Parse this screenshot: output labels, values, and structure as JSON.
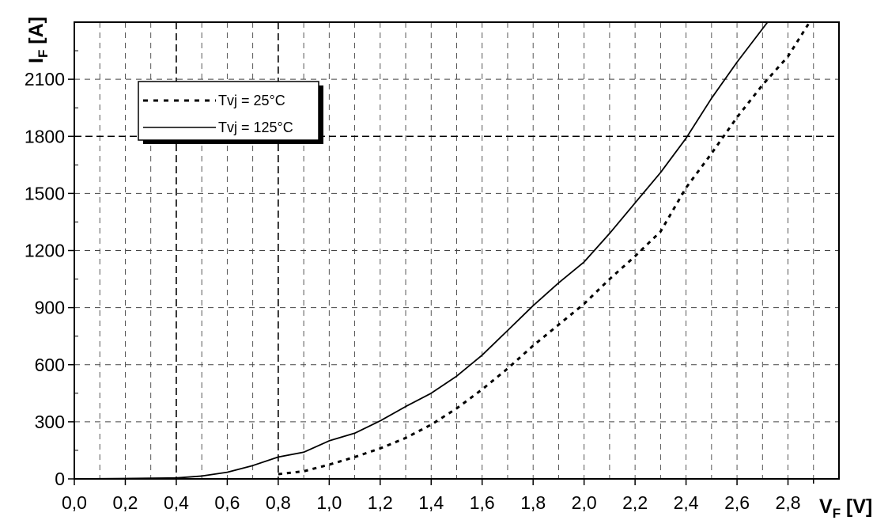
{
  "chart_data": {
    "type": "line",
    "ylabel": {
      "main": "I",
      "sub": "F",
      "unit": " [A]"
    },
    "xlabel": {
      "main": "V",
      "sub": "F",
      "unit": " [V]"
    },
    "xlim": [
      0,
      3.0
    ],
    "ylim": [
      0,
      2400
    ],
    "x_ticks": [
      "0,0",
      "0,2",
      "0,4",
      "0,6",
      "0,8",
      "1,0",
      "1,2",
      "1,4",
      "1,6",
      "1,8",
      "2,0",
      "2,2",
      "2,4",
      "2,6",
      "2,8"
    ],
    "x_tick_values": [
      0,
      0.2,
      0.4,
      0.6,
      0.8,
      1.0,
      1.2,
      1.4,
      1.6,
      1.8,
      2.0,
      2.2,
      2.4,
      2.6,
      2.8
    ],
    "x_grid_step": 0.1,
    "y_ticks": [
      "0",
      "300",
      "600",
      "900",
      "1200",
      "1500",
      "1800",
      "2100"
    ],
    "y_tick_values": [
      0,
      300,
      600,
      900,
      1200,
      1500,
      1800,
      2100
    ],
    "grid": true,
    "legend_position": "top-left",
    "series": [
      {
        "name": "Tvj = 25°C",
        "style": "dotted",
        "color": "#000000",
        "points": [
          [
            0.8,
            25
          ],
          [
            0.9,
            40
          ],
          [
            1.0,
            75
          ],
          [
            1.1,
            115
          ],
          [
            1.2,
            160
          ],
          [
            1.3,
            215
          ],
          [
            1.4,
            285
          ],
          [
            1.5,
            370
          ],
          [
            1.6,
            470
          ],
          [
            1.7,
            580
          ],
          [
            1.8,
            700
          ],
          [
            1.9,
            810
          ],
          [
            2.0,
            920
          ],
          [
            2.1,
            1050
          ],
          [
            2.2,
            1170
          ],
          [
            2.3,
            1300
          ],
          [
            2.4,
            1530
          ],
          [
            2.5,
            1710
          ],
          [
            2.6,
            1900
          ],
          [
            2.7,
            2070
          ],
          [
            2.8,
            2220
          ],
          [
            2.88,
            2390
          ]
        ]
      },
      {
        "name": "Tvj = 125°C",
        "style": "solid",
        "color": "#000000",
        "points": [
          [
            0.0,
            0
          ],
          [
            0.2,
            2
          ],
          [
            0.4,
            5
          ],
          [
            0.5,
            15
          ],
          [
            0.6,
            35
          ],
          [
            0.7,
            70
          ],
          [
            0.8,
            115
          ],
          [
            0.9,
            140
          ],
          [
            1.0,
            200
          ],
          [
            1.1,
            240
          ],
          [
            1.2,
            305
          ],
          [
            1.3,
            380
          ],
          [
            1.4,
            450
          ],
          [
            1.5,
            540
          ],
          [
            1.6,
            650
          ],
          [
            1.7,
            780
          ],
          [
            1.8,
            910
          ],
          [
            1.9,
            1030
          ],
          [
            2.0,
            1140
          ],
          [
            2.1,
            1290
          ],
          [
            2.2,
            1450
          ],
          [
            2.3,
            1610
          ],
          [
            2.4,
            1790
          ],
          [
            2.5,
            2000
          ],
          [
            2.6,
            2190
          ],
          [
            2.72,
            2400
          ]
        ]
      }
    ]
  }
}
